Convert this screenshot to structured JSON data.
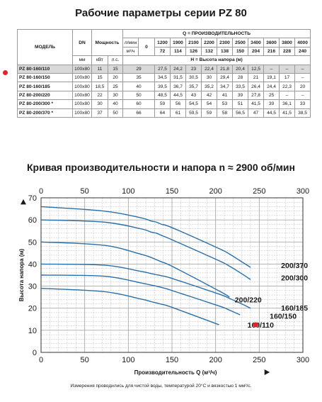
{
  "table": {
    "title": "Рабочие параметры серии PZ 80",
    "headers": {
      "model": "МОДЕЛЬ",
      "dn": "DN",
      "dn_unit": "мм",
      "power": "Мощность",
      "power_kw": "кВт",
      "power_hp": "л.с.",
      "q_title": "Q = ПРОИЗВОДИТЕЛЬНОСТЬ",
      "unit_lmin": "л/мин",
      "unit_m3h": "м³/ч",
      "zero": "0",
      "h_title": "H = Высота напора (м)",
      "lmin": [
        "1200",
        "1900",
        "2100",
        "2200",
        "2300",
        "2500",
        "3400",
        "3600",
        "3800",
        "4000"
      ],
      "m3h": [
        "72",
        "114",
        "126",
        "132",
        "138",
        "150",
        "204",
        "216",
        "228",
        "240"
      ]
    },
    "rows": [
      {
        "model": "PZ 80-160/110",
        "dn": "100x80",
        "kw": "11",
        "hp": "15",
        "h0": "29",
        "h": [
          "27,5",
          "24,2",
          "23",
          "22,4",
          "21,8",
          "20,4",
          "12,5",
          "–",
          "–",
          "–"
        ]
      },
      {
        "model": "PZ 80-160/150",
        "dn": "100x80",
        "kw": "15",
        "hp": "20",
        "h0": "35",
        "h": [
          "34,5",
          "31,5",
          "30,5",
          "30",
          "29,4",
          "28",
          "21",
          "19,1",
          "17",
          "–"
        ]
      },
      {
        "model": "PZ 80-160/185",
        "dn": "100x80",
        "kw": "18,5",
        "hp": "25",
        "h0": "40",
        "h": [
          "39,5",
          "36,7",
          "35,7",
          "35,2",
          "34,7",
          "33,5",
          "26,4",
          "24,4",
          "22,3",
          "20"
        ]
      },
      {
        "model": "PZ 80-200/220",
        "dn": "100x80",
        "kw": "22",
        "hp": "30",
        "h0": "50",
        "h": [
          "48,5",
          "44,5",
          "43",
          "42",
          "41",
          "39",
          "27,8",
          "25",
          "–",
          "–"
        ]
      },
      {
        "model": "PZ 80-200/300 *",
        "dn": "100x80",
        "kw": "30",
        "hp": "40",
        "h0": "60",
        "h": [
          "59",
          "56",
          "54,5",
          "54",
          "53",
          "51",
          "41,5",
          "39",
          "36,1",
          "33"
        ]
      },
      {
        "model": "PZ 80-200/370 *",
        "dn": "100x80",
        "kw": "37",
        "hp": "50",
        "h0": "66",
        "h": [
          "64",
          "61",
          "59,5",
          "59",
          "58",
          "56,5",
          "47",
          "44,5",
          "41,5",
          "38,5"
        ]
      }
    ]
  },
  "chart_title": "Кривая производительности и напора n ≈ 2900 об/мин",
  "colors": {
    "curve": "#2a6fa8",
    "grid": "#a8a8a8",
    "marker": "#e0232a",
    "highlight": "#d9d9d9"
  },
  "chart_data": {
    "type": "line",
    "xlabel": "Производительность Q (м³/ч)",
    "ylabel": "Высота напора (м)",
    "x_top_ticks": [
      "0",
      "50",
      "100",
      "150",
      "200",
      "250",
      "300"
    ],
    "xlim_top": [
      0,
      300
    ],
    "x_bottom_ticks": [
      "0",
      "50",
      "100",
      "150",
      "200",
      "250",
      "300"
    ],
    "xlim_bottom": [
      0,
      300
    ],
    "y_ticks": [
      "0",
      "10",
      "20",
      "30",
      "40",
      "50",
      "60",
      "70"
    ],
    "ylim": [
      0,
      70
    ],
    "grid": true,
    "series": [
      {
        "name": "160/110",
        "x": [
          0,
          72,
          114,
          126,
          132,
          138,
          150,
          204
        ],
        "y": [
          29,
          27.5,
          24.2,
          23,
          22.4,
          21.8,
          20.4,
          12.5
        ]
      },
      {
        "name": "160/150",
        "x": [
          0,
          72,
          114,
          126,
          132,
          138,
          150,
          204,
          216,
          228
        ],
        "y": [
          35,
          34.5,
          31.5,
          30.5,
          30,
          29.4,
          28,
          21,
          19.1,
          17
        ]
      },
      {
        "name": "160/185",
        "x": [
          0,
          72,
          114,
          126,
          132,
          138,
          150,
          204,
          216,
          228,
          240
        ],
        "y": [
          40,
          39.5,
          36.7,
          35.7,
          35.2,
          34.7,
          33.5,
          26.4,
          24.4,
          22.3,
          20
        ]
      },
      {
        "name": "200/220",
        "x": [
          0,
          72,
          114,
          126,
          132,
          138,
          150,
          204,
          216
        ],
        "y": [
          50,
          48.5,
          44.5,
          43,
          42,
          41,
          39,
          27.8,
          25
        ]
      },
      {
        "name": "200/300",
        "x": [
          0,
          72,
          114,
          126,
          132,
          138,
          150,
          204,
          216,
          228,
          240
        ],
        "y": [
          60,
          59,
          56,
          54.5,
          54,
          53,
          51,
          41.5,
          39,
          36.1,
          33
        ]
      },
      {
        "name": "200/370",
        "x": [
          0,
          72,
          114,
          126,
          132,
          138,
          150,
          204,
          216,
          228,
          240
        ],
        "y": [
          66,
          64,
          61,
          59.5,
          59,
          58,
          56.5,
          47,
          44.5,
          41.5,
          38.5
        ]
      }
    ],
    "marker_series": "160/110"
  },
  "footnote": "Измерения проводились для чистой воды, температурой 20°C и вязкостью 1 мм²/с."
}
